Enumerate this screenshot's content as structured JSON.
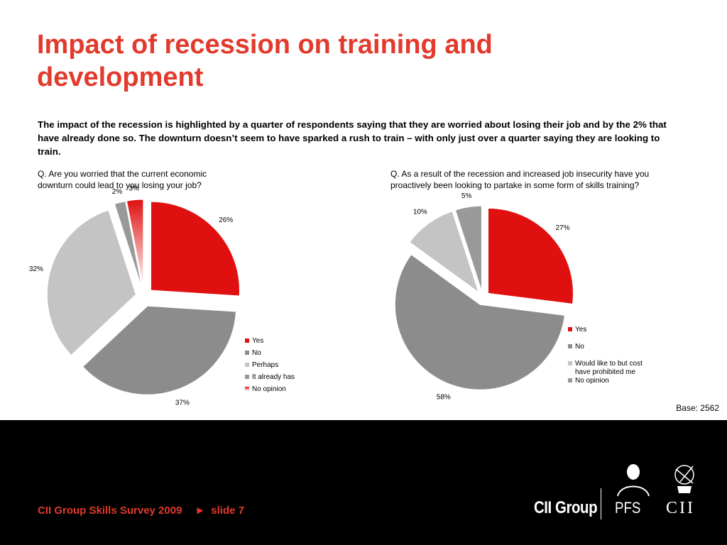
{
  "title": "Impact of recession on training and development",
  "intro": "The impact of the recession is highlighted by a quarter of respondents saying that they are worried about losing their job and by the 2% that have already done so. The downturn doesn’t seem to have sparked a rush to train – with only just over a quarter saying they are looking to train.",
  "colors": {
    "accent": "#e23a2c",
    "yes": "#e01010",
    "no": "#8c8c8c",
    "light_grey": "#c4c4c4",
    "dark_grey": "#999999",
    "footer_bg": "#000000"
  },
  "base_note": "Base: 2562",
  "footer": {
    "survey": "CII Group Skills Survey 2009",
    "slide": "slide 7",
    "logos": {
      "cii_group": "CII Group",
      "pfs": "PFS",
      "cii": "CII"
    }
  },
  "chart_data": [
    {
      "type": "pie",
      "title": "Q. Are you worried that the current economic downturn could lead to you losing your job?",
      "legend_position": "right",
      "slices": [
        {
          "label": "Yes",
          "value": 26,
          "value_label": "26%",
          "color": "#e01010"
        },
        {
          "label": "No",
          "value": 37,
          "value_label": "37%",
          "color": "#8c8c8c"
        },
        {
          "label": "Perhaps",
          "value": 32,
          "value_label": "32%",
          "color": "#c4c4c4"
        },
        {
          "label": "It already has",
          "value": 2,
          "value_label": "2%",
          "color": "#999999"
        },
        {
          "label": "No opinion",
          "value": 3,
          "value_label": "3%",
          "color": "#e01010",
          "gradient": true
        }
      ]
    },
    {
      "type": "pie",
      "title": "Q. As a result of the recession and increased job insecurity have you proactively been looking to partake in some form of skills training?",
      "legend_position": "right",
      "slices": [
        {
          "label": "Yes",
          "value": 27,
          "value_label": "27%",
          "color": "#e01010"
        },
        {
          "label": "No",
          "value": 58,
          "value_label": "58%",
          "color": "#8c8c8c"
        },
        {
          "label": "Would like to but cost have prohibited me",
          "value": 10,
          "value_label": "10%",
          "color": "#c4c4c4"
        },
        {
          "label": "No opinion",
          "value": 5,
          "value_label": "5%",
          "color": "#999999"
        }
      ]
    }
  ]
}
